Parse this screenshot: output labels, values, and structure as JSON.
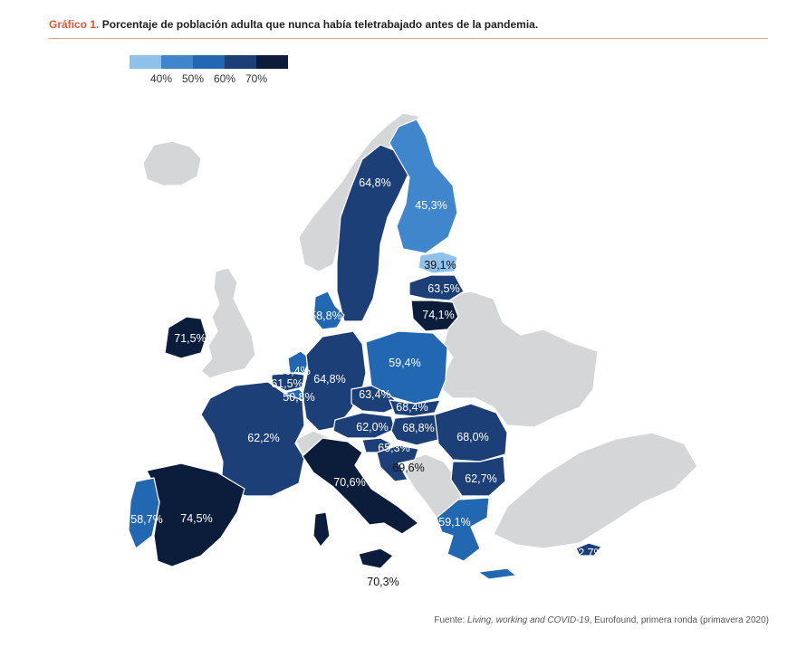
{
  "header": {
    "figure_label": "Gráfico 1.",
    "title": "Porcentaje de población adulta que nunca había teletrabajado antes de la pandemia."
  },
  "legend": {
    "colors": [
      "#8ec2ea",
      "#3f86cc",
      "#2267b2",
      "#1c3f78",
      "#0b1d3a"
    ],
    "ticks": [
      "40%",
      "50%",
      "60%",
      "70%"
    ]
  },
  "colors": {
    "no_data": "#d4d6d8",
    "border": "#ffffff"
  },
  "countries": {
    "sweden": "64,8%",
    "finland": "45,3%",
    "estonia": "39,1%",
    "latvia": "63,5%",
    "lithuania": "74,1%",
    "denmark": "58,8%",
    "ireland": "71,5%",
    "netherlands": "56,4%",
    "belgium": "61,5%",
    "luxembourg": "50,8%",
    "germany": "64,8%",
    "poland": "59,4%",
    "czechia": "63,4%",
    "slovakia": "68,4%",
    "austria": "62,0%",
    "hungary": "68,8%",
    "slovenia": "65,3%",
    "croatia": "69,6%",
    "romania": "68,0%",
    "bulgaria": "62,7%",
    "france": "62,2%",
    "italy": "70,6%",
    "malta": "70,3%",
    "spain": "74,5%",
    "portugal": "58,7%",
    "greece": "59,1%",
    "cyprus": "62,7%"
  },
  "source": {
    "prefix": "Fuente: ",
    "work": "Living, working and COVID-19",
    "suffix": ", Eurofound, primera ronda (primavera 2020)"
  }
}
